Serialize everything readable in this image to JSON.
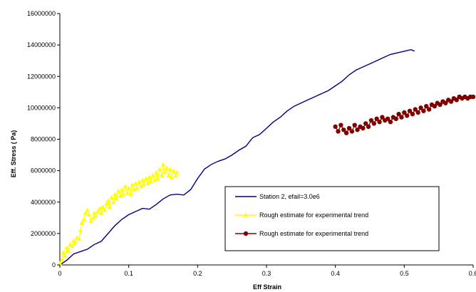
{
  "chart_data": {
    "type": "scatter",
    "title": "",
    "xlabel": "Eff Strain",
    "ylabel": "Eff. Stress ( Pa)",
    "xlim": [
      0,
      0.6
    ],
    "ylim": [
      0,
      16000000
    ],
    "x_ticks": [
      0,
      0.1,
      0.2,
      0.3,
      0.4,
      0.5,
      0.6
    ],
    "x_tick_labels": [
      "0",
      "0.1",
      "0.2",
      "0.3",
      "0.4",
      "0.5",
      "0.6"
    ],
    "y_ticks": [
      0,
      2000000,
      4000000,
      6000000,
      8000000,
      10000000,
      12000000,
      14000000,
      16000000
    ],
    "y_tick_labels": [
      "0",
      "2000000",
      "4000000",
      "6000000",
      "8000000",
      "10000000",
      "12000000",
      "14000000",
      "16000000"
    ],
    "grid": false,
    "legend_position": "inside-right",
    "series": [
      {
        "name": "Station 2, efail=3.0e6",
        "kind": "line",
        "color": "#000080",
        "points": [
          [
            0,
            0
          ],
          [
            0.01,
            300000
          ],
          [
            0.02,
            700000
          ],
          [
            0.03,
            850000
          ],
          [
            0.04,
            1000000
          ],
          [
            0.05,
            1300000
          ],
          [
            0.06,
            1500000
          ],
          [
            0.07,
            2000000
          ],
          [
            0.08,
            2500000
          ],
          [
            0.09,
            2900000
          ],
          [
            0.1,
            3200000
          ],
          [
            0.11,
            3400000
          ],
          [
            0.12,
            3600000
          ],
          [
            0.13,
            3550000
          ],
          [
            0.14,
            3850000
          ],
          [
            0.15,
            4200000
          ],
          [
            0.16,
            4450000
          ],
          [
            0.17,
            4500000
          ],
          [
            0.18,
            4450000
          ],
          [
            0.19,
            4800000
          ],
          [
            0.2,
            5500000
          ],
          [
            0.21,
            6100000
          ],
          [
            0.22,
            6400000
          ],
          [
            0.23,
            6600000
          ],
          [
            0.24,
            6750000
          ],
          [
            0.25,
            7000000
          ],
          [
            0.26,
            7300000
          ],
          [
            0.27,
            7550000
          ],
          [
            0.28,
            8100000
          ],
          [
            0.29,
            8300000
          ],
          [
            0.3,
            8700000
          ],
          [
            0.31,
            9100000
          ],
          [
            0.32,
            9400000
          ],
          [
            0.33,
            9800000
          ],
          [
            0.34,
            10100000
          ],
          [
            0.35,
            10300000
          ],
          [
            0.36,
            10500000
          ],
          [
            0.37,
            10700000
          ],
          [
            0.38,
            10900000
          ],
          [
            0.39,
            11100000
          ],
          [
            0.4,
            11400000
          ],
          [
            0.41,
            11700000
          ],
          [
            0.42,
            12100000
          ],
          [
            0.43,
            12400000
          ],
          [
            0.44,
            12600000
          ],
          [
            0.45,
            12800000
          ],
          [
            0.46,
            13000000
          ],
          [
            0.47,
            13200000
          ],
          [
            0.48,
            13400000
          ],
          [
            0.49,
            13500000
          ],
          [
            0.5,
            13600000
          ],
          [
            0.51,
            13700000
          ],
          [
            0.515,
            13600000
          ]
        ]
      },
      {
        "name": "Rough estimate for experimental trend",
        "kind": "line-marker",
        "marker": "triangle",
        "color": "#ffff00",
        "points": [
          [
            0.0,
            100000
          ],
          [
            0.003,
            350000
          ],
          [
            0.005,
            800000
          ],
          [
            0.007,
            600000
          ],
          [
            0.01,
            1100000
          ],
          [
            0.012,
            900000
          ],
          [
            0.015,
            1300000
          ],
          [
            0.018,
            1200000
          ],
          [
            0.02,
            1550000
          ],
          [
            0.022,
            1400000
          ],
          [
            0.025,
            1750000
          ],
          [
            0.028,
            1650000
          ],
          [
            0.03,
            2200000
          ],
          [
            0.032,
            2700000
          ],
          [
            0.035,
            2900000
          ],
          [
            0.037,
            3300000
          ],
          [
            0.04,
            3500000
          ],
          [
            0.042,
            3200000
          ],
          [
            0.045,
            2800000
          ],
          [
            0.048,
            3000000
          ],
          [
            0.05,
            3300000
          ],
          [
            0.052,
            3100000
          ],
          [
            0.055,
            3400000
          ],
          [
            0.058,
            3600000
          ],
          [
            0.06,
            3300000
          ],
          [
            0.062,
            3700000
          ],
          [
            0.065,
            3500000
          ],
          [
            0.068,
            3900000
          ],
          [
            0.07,
            4100000
          ],
          [
            0.072,
            3700000
          ],
          [
            0.075,
            4300000
          ],
          [
            0.078,
            4000000
          ],
          [
            0.08,
            4500000
          ],
          [
            0.082,
            4200000
          ],
          [
            0.085,
            4700000
          ],
          [
            0.088,
            4400000
          ],
          [
            0.09,
            4800000
          ],
          [
            0.092,
            4500000
          ],
          [
            0.095,
            5000000
          ],
          [
            0.098,
            4600000
          ],
          [
            0.1,
            4900000
          ],
          [
            0.103,
            4500000
          ],
          [
            0.105,
            5100000
          ],
          [
            0.108,
            4800000
          ],
          [
            0.11,
            5200000
          ],
          [
            0.112,
            4900000
          ],
          [
            0.115,
            5300000
          ],
          [
            0.118,
            5000000
          ],
          [
            0.12,
            5400000
          ],
          [
            0.122,
            5100000
          ],
          [
            0.125,
            5500000
          ],
          [
            0.128,
            5200000
          ],
          [
            0.13,
            5600000
          ],
          [
            0.132,
            5300000
          ],
          [
            0.135,
            5700000
          ],
          [
            0.138,
            5400000
          ],
          [
            0.14,
            5900000
          ],
          [
            0.142,
            5500000
          ],
          [
            0.145,
            6100000
          ],
          [
            0.148,
            5700000
          ],
          [
            0.15,
            6400000
          ],
          [
            0.152,
            5900000
          ],
          [
            0.155,
            6200000
          ],
          [
            0.158,
            5700000
          ],
          [
            0.16,
            6100000
          ],
          [
            0.162,
            5600000
          ],
          [
            0.165,
            6000000
          ],
          [
            0.168,
            5700000
          ],
          [
            0.17,
            5900000
          ]
        ]
      },
      {
        "name": "Rough estimate for experimental trend",
        "kind": "line-marker",
        "marker": "circle",
        "color": "#800000",
        "points": [
          [
            0.4,
            8800000
          ],
          [
            0.404,
            8500000
          ],
          [
            0.408,
            8900000
          ],
          [
            0.412,
            8600000
          ],
          [
            0.416,
            8400000
          ],
          [
            0.42,
            8700000
          ],
          [
            0.424,
            8500000
          ],
          [
            0.428,
            8900000
          ],
          [
            0.432,
            8600000
          ],
          [
            0.436,
            8800000
          ],
          [
            0.44,
            8700000
          ],
          [
            0.444,
            9000000
          ],
          [
            0.448,
            8800000
          ],
          [
            0.452,
            9200000
          ],
          [
            0.456,
            9000000
          ],
          [
            0.46,
            9300000
          ],
          [
            0.464,
            9100000
          ],
          [
            0.468,
            9400000
          ],
          [
            0.472,
            9200000
          ],
          [
            0.476,
            9300000
          ],
          [
            0.48,
            9100000
          ],
          [
            0.484,
            9400000
          ],
          [
            0.488,
            9300000
          ],
          [
            0.492,
            9600000
          ],
          [
            0.496,
            9400000
          ],
          [
            0.5,
            9700000
          ],
          [
            0.504,
            9500000
          ],
          [
            0.508,
            9800000
          ],
          [
            0.512,
            9600000
          ],
          [
            0.516,
            9900000
          ],
          [
            0.52,
            9700000
          ],
          [
            0.524,
            10000000
          ],
          [
            0.528,
            9800000
          ],
          [
            0.532,
            10100000
          ],
          [
            0.536,
            9900000
          ],
          [
            0.54,
            10200000
          ],
          [
            0.544,
            10100000
          ],
          [
            0.548,
            10300000
          ],
          [
            0.552,
            10200000
          ],
          [
            0.556,
            10400000
          ],
          [
            0.56,
            10300000
          ],
          [
            0.564,
            10500000
          ],
          [
            0.568,
            10400000
          ],
          [
            0.572,
            10600000
          ],
          [
            0.576,
            10500000
          ],
          [
            0.58,
            10700000
          ],
          [
            0.584,
            10600000
          ],
          [
            0.588,
            10700000
          ],
          [
            0.592,
            10600000
          ],
          [
            0.596,
            10700000
          ],
          [
            0.6,
            10700000
          ]
        ]
      }
    ]
  }
}
